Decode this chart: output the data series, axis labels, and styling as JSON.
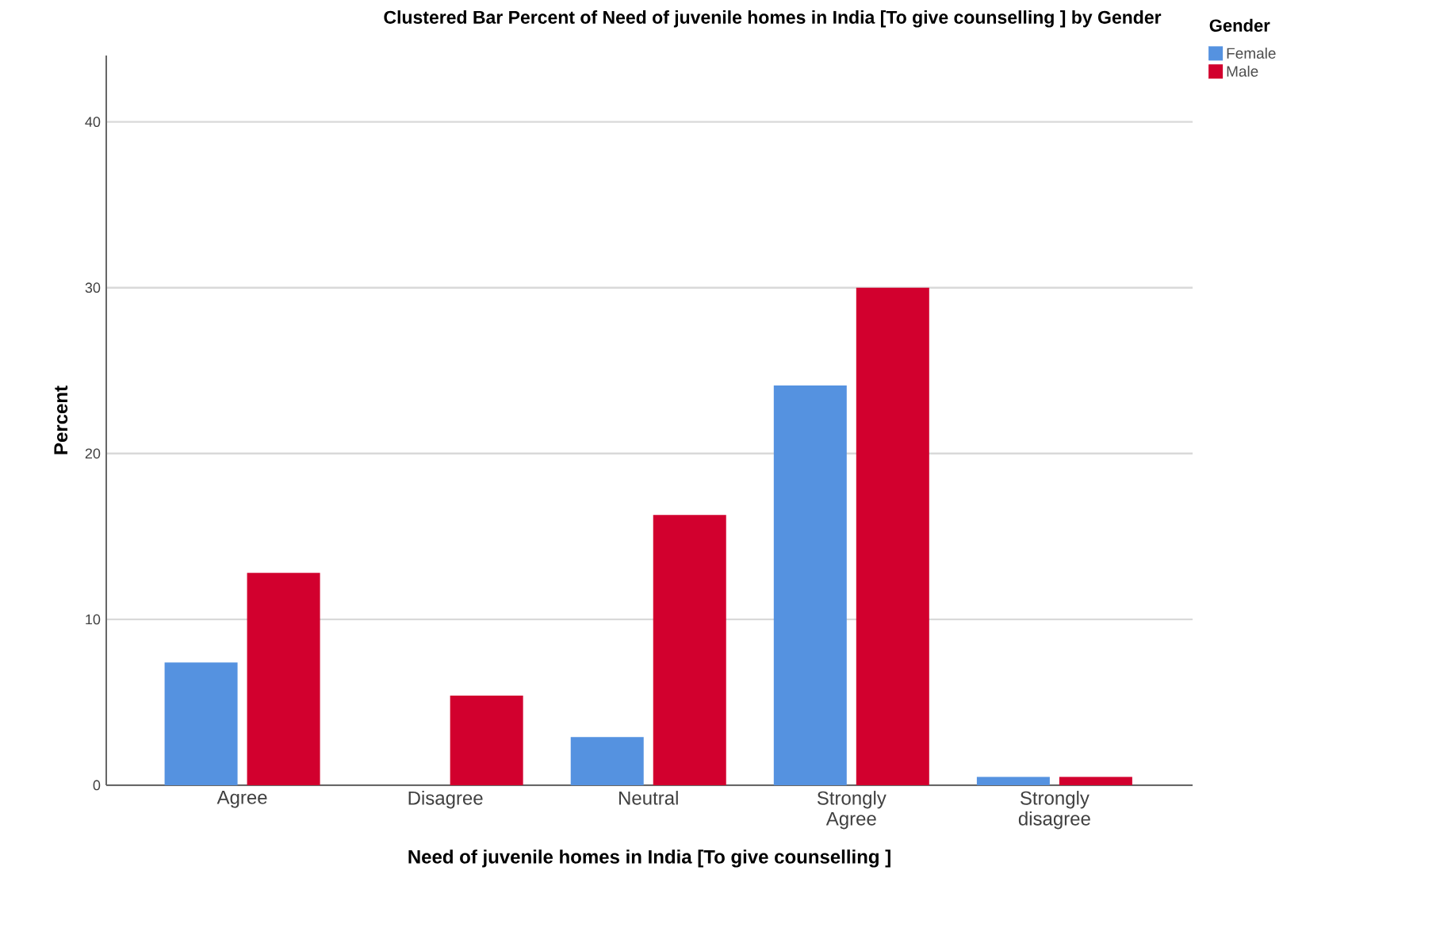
{
  "chart_data": {
    "type": "bar",
    "title": "Clustered Bar Percent of Need of juvenile homes in India [To give counselling ] by Gender",
    "xlabel": "Need of juvenile homes in India [To give counselling ]",
    "ylabel": "Percent",
    "legend_title": "Gender",
    "categories": [
      "Agree",
      "Disagree",
      "Neutral",
      "Strongly Agree",
      "Strongly disagree"
    ],
    "series": [
      {
        "name": "Female",
        "color": "#5592e0",
        "values": [
          7.4,
          0,
          2.9,
          24.1,
          0.5
        ]
      },
      {
        "name": "Male",
        "color": "#d2002e",
        "values": [
          12.8,
          5.4,
          16.3,
          30.0,
          0.5
        ]
      }
    ],
    "ylim": [
      0,
      44
    ],
    "yticks": [
      0,
      10,
      20,
      30,
      40
    ],
    "grid": "y",
    "legend": "top right"
  }
}
